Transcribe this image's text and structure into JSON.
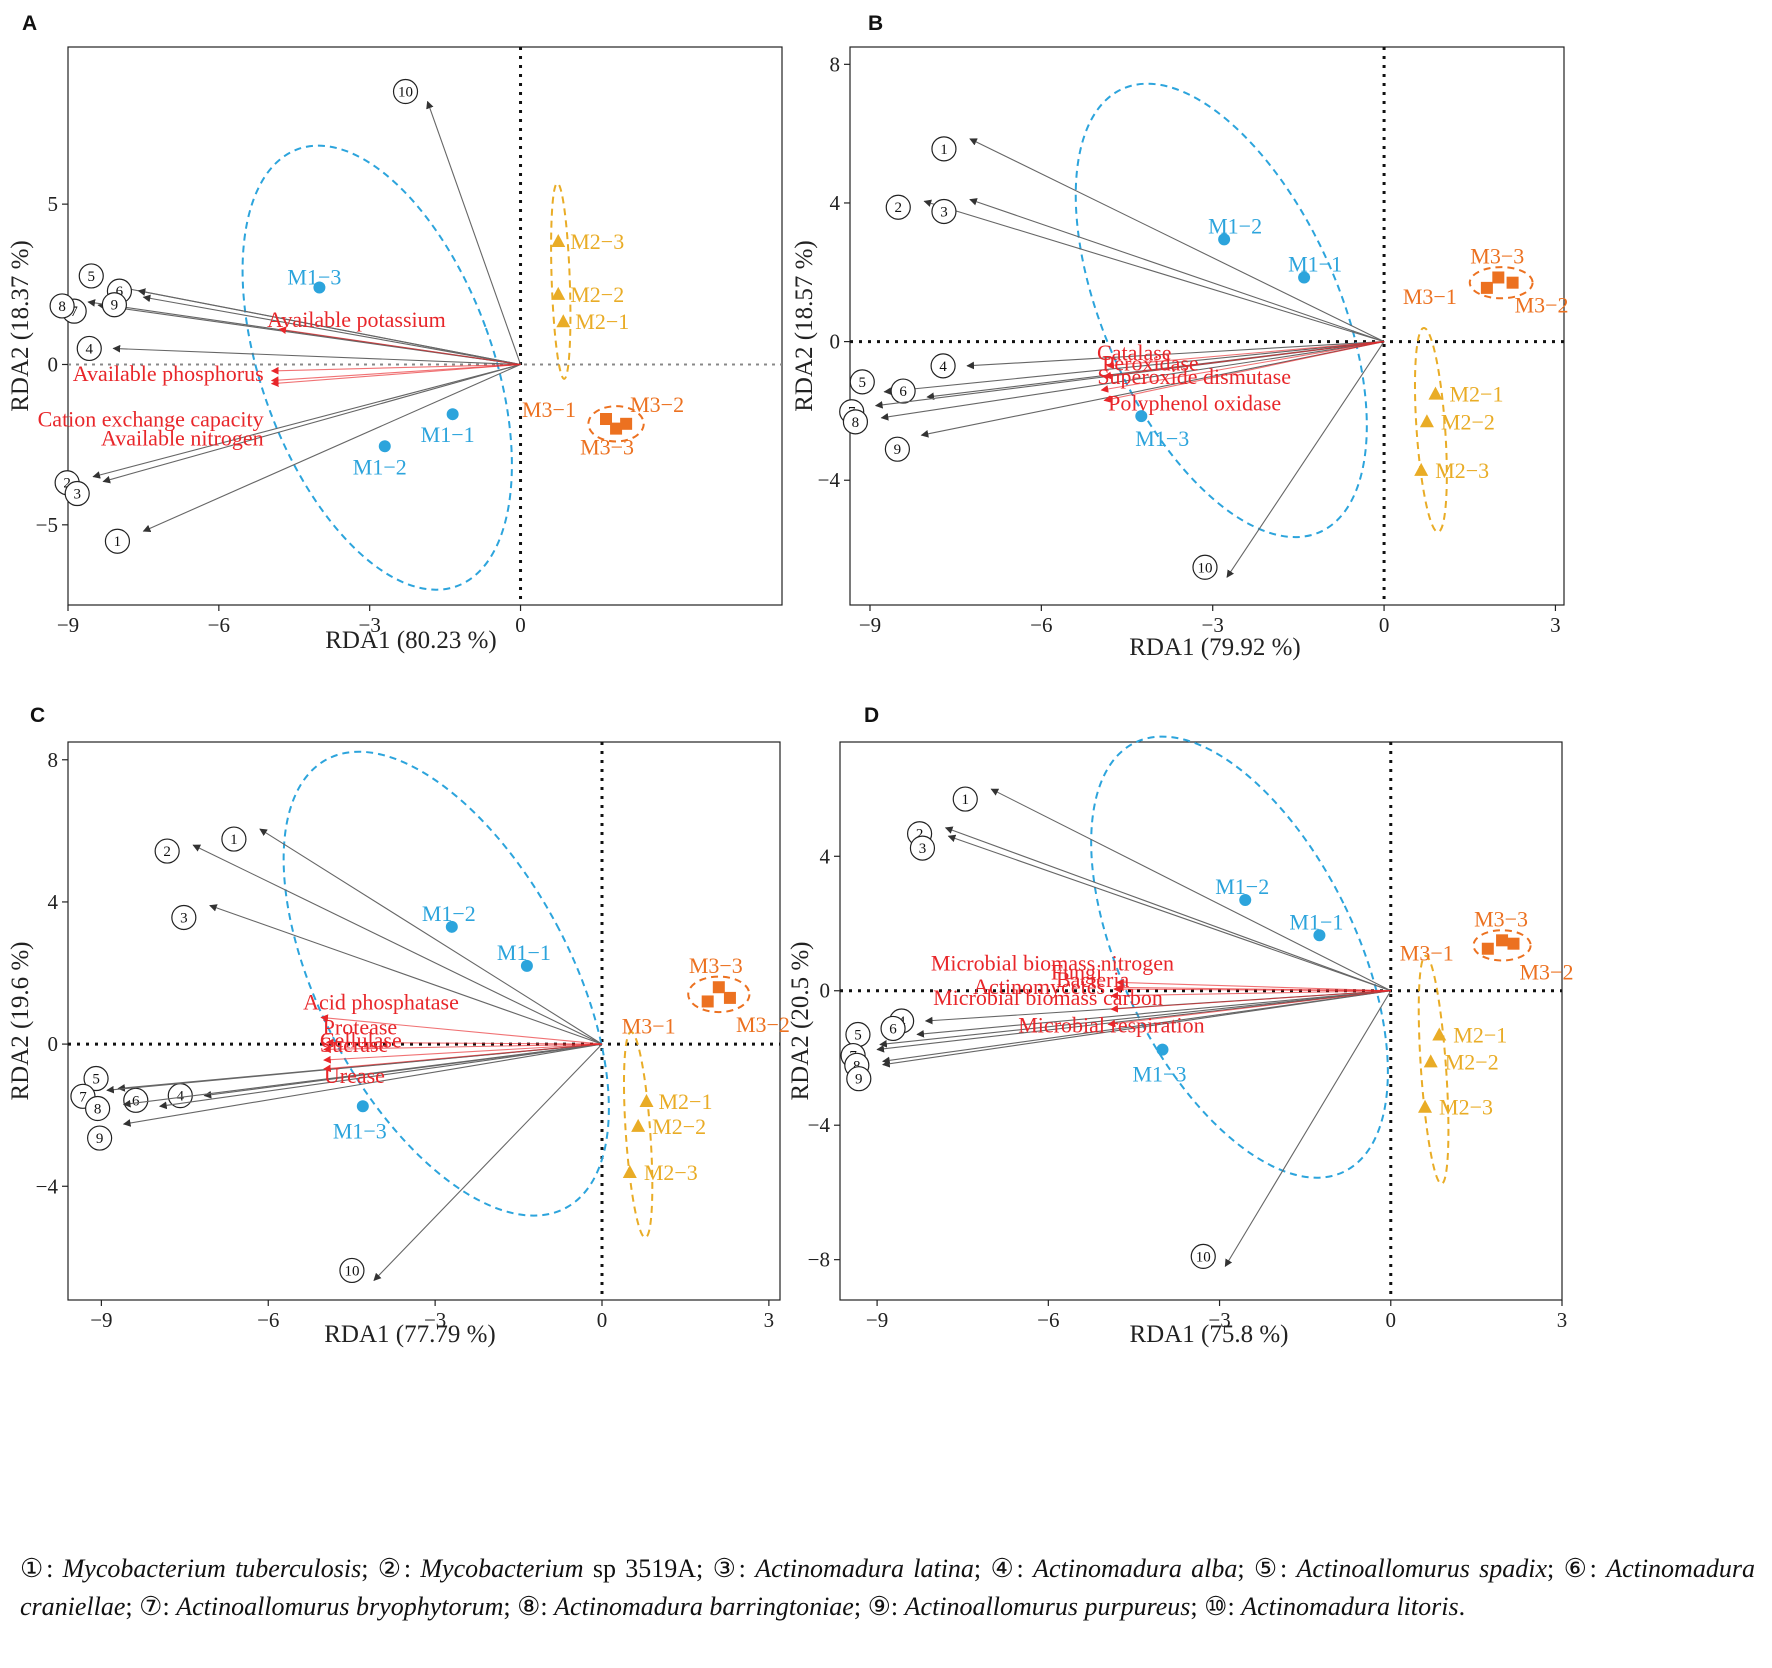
{
  "colors": {
    "m1": "#2ca4dc",
    "m2": "#e9ac26",
    "m3": "#ec7120",
    "env": "#e8262a",
    "species": "#5a5a5a",
    "axis": "#111111"
  },
  "chart_data": [
    {
      "panel": "A",
      "type": "scatter",
      "xlabel": "RDA1 (80.23 %)",
      "ylabel": "RDA2 (18.37 %)",
      "xlim": [
        -9.0,
        5.2
      ],
      "ylim": [
        -7.5,
        9.9
      ],
      "xticks": [
        -9,
        -6,
        -3,
        0
      ],
      "yticks": [
        -5,
        0,
        5
      ],
      "samples": [
        {
          "name": "M1−1",
          "group": "M1",
          "x": -1.35,
          "y": -1.55
        },
        {
          "name": "M1−2",
          "group": "M1",
          "x": -2.7,
          "y": -2.55
        },
        {
          "name": "M1−3",
          "group": "M1",
          "x": -4.0,
          "y": 2.4
        },
        {
          "name": "M2−1",
          "group": "M2",
          "x": 0.85,
          "y": 1.35
        },
        {
          "name": "M2−2",
          "group": "M2",
          "x": 0.75,
          "y": 2.2
        },
        {
          "name": "M2−3",
          "group": "M2",
          "x": 0.75,
          "y": 3.85
        },
        {
          "name": "M3−1",
          "group": "M3",
          "x": 1.7,
          "y": -1.7
        },
        {
          "name": "M3−2",
          "group": "M3",
          "x": 2.1,
          "y": -1.85
        },
        {
          "name": "M3−3",
          "group": "M3",
          "x": 1.9,
          "y": -2.0
        }
      ],
      "species_arrows": [
        {
          "id": "①",
          "x": -7.5,
          "y": -5.2
        },
        {
          "id": "②",
          "x": -8.5,
          "y": -3.5
        },
        {
          "id": "③",
          "x": -8.3,
          "y": -3.65
        },
        {
          "id": "④",
          "x": -8.1,
          "y": 0.5
        },
        {
          "id": "⑤",
          "x": -8.1,
          "y": 2.45
        },
        {
          "id": "⑥",
          "x": -7.5,
          "y": 2.1
        },
        {
          "id": "⑦",
          "x": -8.4,
          "y": 1.85
        },
        {
          "id": "⑧",
          "x": -8.6,
          "y": 1.95
        },
        {
          "id": "⑨",
          "x": -7.6,
          "y": 2.3
        },
        {
          "id": "⑩",
          "x": -1.85,
          "y": 8.2
        }
      ],
      "env_arrows": [
        {
          "name": "Available potassium",
          "x": -4.8,
          "y": 1.1
        },
        {
          "name": "Available phosphorus",
          "x": -4.95,
          "y": -0.2
        },
        {
          "name": "Cation exchange capacity",
          "x": -4.95,
          "y": -0.5
        },
        {
          "name": "Available nitrogen",
          "x": -4.95,
          "y": -0.6
        }
      ]
    },
    {
      "panel": "B",
      "type": "scatter",
      "xlabel": "RDA1 (79.92 %)",
      "ylabel": "RDA2 (18.57 %)",
      "xlim": [
        -9.35,
        3.15
      ],
      "ylim": [
        -7.6,
        8.5
      ],
      "xticks": [
        -9,
        -6,
        -3,
        0,
        3
      ],
      "yticks": [
        -4,
        0,
        4,
        8
      ],
      "samples": [
        {
          "name": "M1−1",
          "group": "M1",
          "x": -1.4,
          "y": 1.85
        },
        {
          "name": "M1−2",
          "group": "M1",
          "x": -2.8,
          "y": 2.95
        },
        {
          "name": "M1−3",
          "group": "M1",
          "x": -4.25,
          "y": -2.15
        },
        {
          "name": "M2−1",
          "group": "M2",
          "x": 0.9,
          "y": -1.5
        },
        {
          "name": "M2−2",
          "group": "M2",
          "x": 0.75,
          "y": -2.3
        },
        {
          "name": "M2−3",
          "group": "M2",
          "x": 0.65,
          "y": -3.7
        },
        {
          "name": "M3−1",
          "group": "M3",
          "x": 1.8,
          "y": 1.55
        },
        {
          "name": "M3−2",
          "group": "M3",
          "x": 2.25,
          "y": 1.7
        },
        {
          "name": "M3−3",
          "group": "M3",
          "x": 2.0,
          "y": 1.85
        }
      ],
      "species_arrows": [
        {
          "id": "①",
          "x": -7.25,
          "y": 5.85
        },
        {
          "id": "②",
          "x": -8.05,
          "y": 4.05
        },
        {
          "id": "③",
          "x": -7.25,
          "y": 4.1
        },
        {
          "id": "④",
          "x": -7.3,
          "y": -0.7
        },
        {
          "id": "⑤",
          "x": -8.75,
          "y": -1.45
        },
        {
          "id": "⑥",
          "x": -8.0,
          "y": -1.6
        },
        {
          "id": "⑦",
          "x": -8.9,
          "y": -1.85
        },
        {
          "id": "⑧",
          "x": -8.8,
          "y": -2.2
        },
        {
          "id": "⑨",
          "x": -8.1,
          "y": -2.7
        },
        {
          "id": "⑩",
          "x": -2.75,
          "y": -6.8
        }
      ],
      "env_arrows": [
        {
          "name": "Catalase",
          "x": -4.85,
          "y": -0.7
        },
        {
          "name": "Peroxidase",
          "x": -4.9,
          "y": -1.0
        },
        {
          "name": "Superoxide dismutase",
          "x": -4.95,
          "y": -1.4
        },
        {
          "name": "Polyphenol oxidase",
          "x": -4.9,
          "y": -1.7
        }
      ]
    },
    {
      "panel": "C",
      "type": "scatter",
      "xlabel": "RDA1 (77.79 %)",
      "ylabel": "RDA2 (19.6 %)",
      "xlim": [
        -9.6,
        3.2
      ],
      "ylim": [
        -7.2,
        8.5
      ],
      "xticks": [
        -9,
        -6,
        -3,
        0,
        3
      ],
      "yticks": [
        -4,
        0,
        4,
        8
      ],
      "samples": [
        {
          "name": "M1−1",
          "group": "M1",
          "x": -1.35,
          "y": 2.2
        },
        {
          "name": "M1−2",
          "group": "M1",
          "x": -2.7,
          "y": 3.3
        },
        {
          "name": "M1−3",
          "group": "M1",
          "x": -4.3,
          "y": -1.75
        },
        {
          "name": "M2−1",
          "group": "M2",
          "x": 0.8,
          "y": -1.6
        },
        {
          "name": "M2−2",
          "group": "M2",
          "x": 0.65,
          "y": -2.3
        },
        {
          "name": "M2−3",
          "group": "M2",
          "x": 0.5,
          "y": -3.6
        },
        {
          "name": "M3−1",
          "group": "M3",
          "x": 1.9,
          "y": 1.2
        },
        {
          "name": "M3−2",
          "group": "M3",
          "x": 2.3,
          "y": 1.3
        },
        {
          "name": "M3−3",
          "group": "M3",
          "x": 2.1,
          "y": 1.6
        }
      ],
      "species_arrows": [
        {
          "id": "①",
          "x": -6.15,
          "y": 6.05
        },
        {
          "id": "②",
          "x": -7.35,
          "y": 5.6
        },
        {
          "id": "③",
          "x": -7.05,
          "y": 3.9
        },
        {
          "id": "④",
          "x": -7.15,
          "y": -1.45
        },
        {
          "id": "⑤",
          "x": -8.7,
          "y": -1.25
        },
        {
          "id": "⑥",
          "x": -7.95,
          "y": -1.75
        },
        {
          "id": "⑦",
          "x": -8.9,
          "y": -1.3
        },
        {
          "id": "⑧",
          "x": -8.6,
          "y": -1.7
        },
        {
          "id": "⑨",
          "x": -8.6,
          "y": -2.25
        },
        {
          "id": "⑩",
          "x": -4.1,
          "y": -6.65
        }
      ],
      "env_arrows": [
        {
          "name": "Acid phosphatase",
          "x": -5.05,
          "y": 0.75
        },
        {
          "name": "Protease",
          "x": -4.95,
          "y": 0.05
        },
        {
          "name": "Cellulase",
          "x": -5.0,
          "y": -0.15
        },
        {
          "name": "Sucrase",
          "x": -5.0,
          "y": -0.45
        },
        {
          "name": "Urease",
          "x": -5.0,
          "y": -0.7
        }
      ]
    },
    {
      "panel": "D",
      "type": "scatter",
      "xlabel": "RDA1 (75.8 %)",
      "ylabel": "RDA2 (20.5 %)",
      "xlim": [
        -9.65,
        3.0
      ],
      "ylim": [
        -9.2,
        7.4
      ],
      "xticks": [
        -9,
        -6,
        -3,
        0,
        3
      ],
      "yticks": [
        -8,
        -4,
        0,
        4
      ],
      "samples": [
        {
          "name": "M1−1",
          "group": "M1",
          "x": -1.25,
          "y": 1.65
        },
        {
          "name": "M1−2",
          "group": "M1",
          "x": -2.55,
          "y": 2.7
        },
        {
          "name": "M1−3",
          "group": "M1",
          "x": -4.0,
          "y": -1.75
        },
        {
          "name": "M2−1",
          "group": "M2",
          "x": 0.85,
          "y": -1.3
        },
        {
          "name": "M2−2",
          "group": "M2",
          "x": 0.7,
          "y": -2.1
        },
        {
          "name": "M2−3",
          "group": "M2",
          "x": 0.6,
          "y": -3.45
        },
        {
          "name": "M3−1",
          "group": "M3",
          "x": 1.7,
          "y": 1.25
        },
        {
          "name": "M3−2",
          "group": "M3",
          "x": 2.15,
          "y": 1.4
        },
        {
          "name": "M3−3",
          "group": "M3",
          "x": 1.95,
          "y": 1.5
        }
      ],
      "species_arrows": [
        {
          "id": "①",
          "x": -7.0,
          "y": 6.0
        },
        {
          "id": "②",
          "x": -7.8,
          "y": 4.85
        },
        {
          "id": "③",
          "x": -7.75,
          "y": 4.6
        },
        {
          "id": "④",
          "x": -8.15,
          "y": -0.9
        },
        {
          "id": "⑤",
          "x": -8.95,
          "y": -1.6
        },
        {
          "id": "⑥",
          "x": -8.3,
          "y": -1.3
        },
        {
          "id": "⑦",
          "x": -9.0,
          "y": -1.75
        },
        {
          "id": "⑧",
          "x": -8.9,
          "y": -2.1
        },
        {
          "id": "⑨",
          "x": -8.9,
          "y": -2.2
        },
        {
          "id": "⑩",
          "x": -2.9,
          "y": -8.2
        }
      ],
      "env_arrows": [
        {
          "name": "Microbial biomass nitrogen",
          "x": -4.8,
          "y": 0.25
        },
        {
          "name": "Fungi",
          "x": -4.8,
          "y": 0.1
        },
        {
          "name": "Bacteria",
          "x": -4.85,
          "y": 0.05
        },
        {
          "name": "Actinomycetes",
          "x": -4.9,
          "y": -0.15
        },
        {
          "name": "Microbial biomass carbon",
          "x": -4.9,
          "y": -0.55
        },
        {
          "name": "Microbial respiration",
          "x": -4.95,
          "y": -1.0
        }
      ]
    }
  ],
  "caption": [
    {
      "num": "①",
      "name": "Mycobacterium tuberculosis"
    },
    {
      "num": "②",
      "name": "Mycobacterium",
      "extra": " sp 3519A"
    },
    {
      "num": "③",
      "name": "Actinomadura latina"
    },
    {
      "num": "④",
      "name": "Actinomadura alba"
    },
    {
      "num": "⑤",
      "name": "Actinoallomurus spadix"
    },
    {
      "num": "⑥",
      "name": "Actinomadura craniellae"
    },
    {
      "num": "⑦",
      "name": "Actinoallomurus bryophytorum"
    },
    {
      "num": "⑧",
      "name": "Actinomadura barringtoniae"
    },
    {
      "num": "⑨",
      "name": "Actinoallomurus purpureus"
    },
    {
      "num": "⑩",
      "name": "Actinomadura litoris"
    }
  ]
}
